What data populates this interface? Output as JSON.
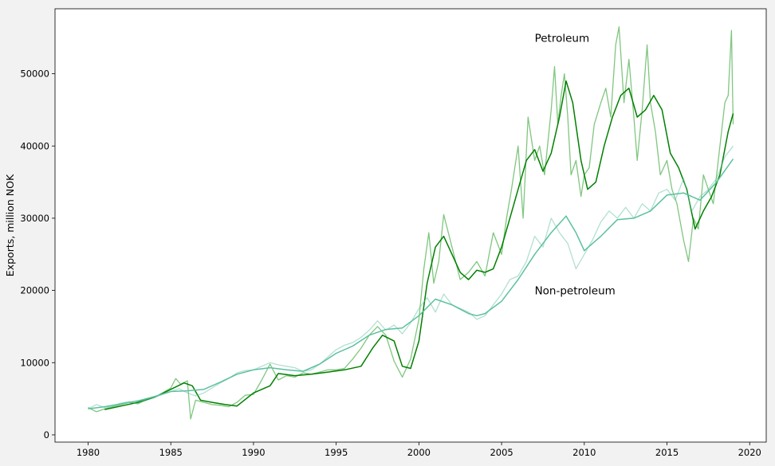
{
  "chart_data": {
    "type": "line",
    "title": "",
    "xlabel": "",
    "ylabel": "Exports, million NOK",
    "xlim": [
      1978.0,
      2021.0
    ],
    "ylim": [
      -1000,
      59000
    ],
    "xticks": [
      1980,
      1985,
      1990,
      1995,
      2000,
      2005,
      2010,
      2015,
      2020
    ],
    "yticks": [
      0,
      10000,
      20000,
      30000,
      40000,
      50000
    ],
    "grid": false,
    "legend": "none",
    "annotations": [
      {
        "text": "Petroleum",
        "x": 2007.0,
        "y": 55000
      },
      {
        "text": "Non-petroleum",
        "x": 2007.0,
        "y": 20000
      }
    ],
    "series": [
      {
        "name": "Petroleum",
        "kind": "monthly",
        "color": "#2ca02c",
        "opacity": 0.6,
        "x": [
          1980.0,
          1980.5,
          1981.0,
          1981.5,
          1982.0,
          1982.5,
          1983.0,
          1983.5,
          1984.0,
          1984.5,
          1985.0,
          1985.3,
          1985.6,
          1986.0,
          1986.2,
          1986.5,
          1987.0,
          1987.5,
          1988.0,
          1988.5,
          1989.0,
          1989.5,
          1990.0,
          1990.5,
          1991.0,
          1991.5,
          1992.0,
          1992.5,
          1993.0,
          1993.5,
          1994.0,
          1994.5,
          1995.0,
          1995.5,
          1996.0,
          1996.5,
          1997.0,
          1997.5,
          1998.0,
          1998.5,
          1999.0,
          1999.5,
          2000.0,
          2000.3,
          2000.6,
          2000.9,
          2001.2,
          2001.5,
          2002.0,
          2002.5,
          2003.0,
          2003.5,
          2004.0,
          2004.5,
          2005.0,
          2005.3,
          2005.6,
          2006.0,
          2006.3,
          2006.6,
          2007.0,
          2007.3,
          2007.6,
          2008.0,
          2008.2,
          2008.4,
          2008.6,
          2008.8,
          2009.0,
          2009.2,
          2009.5,
          2009.8,
          2010.0,
          2010.3,
          2010.6,
          2011.0,
          2011.3,
          2011.6,
          2011.9,
          2012.1,
          2012.4,
          2012.7,
          2013.0,
          2013.2,
          2013.5,
          2013.8,
          2014.0,
          2014.3,
          2014.6,
          2015.0,
          2015.3,
          2015.6,
          2016.0,
          2016.3,
          2016.6,
          2016.9,
          2017.2,
          2017.5,
          2017.8,
          2018.0,
          2018.3,
          2018.5,
          2018.7,
          2018.9,
          2019.0
        ],
        "values": [
          3800,
          3200,
          3600,
          3900,
          4200,
          4500,
          4300,
          4800,
          5200,
          5800,
          6500,
          7800,
          7000,
          7500,
          2200,
          4800,
          4500,
          4200,
          4100,
          3900,
          4500,
          5500,
          5600,
          7600,
          9800,
          7600,
          8200,
          8000,
          8600,
          8400,
          8700,
          9000,
          9000,
          9200,
          10500,
          12000,
          13800,
          15000,
          13800,
          10200,
          8000,
          10500,
          16000,
          23000,
          28000,
          21000,
          24000,
          30500,
          26000,
          21500,
          22500,
          24000,
          22000,
          28000,
          25000,
          30000,
          34000,
          40000,
          30000,
          44000,
          38000,
          40000,
          36000,
          45000,
          51000,
          43000,
          47000,
          50000,
          44000,
          36000,
          38000,
          33000,
          36000,
          37000,
          43000,
          46000,
          48000,
          44000,
          54000,
          56500,
          46000,
          52000,
          44000,
          38000,
          45000,
          54000,
          46000,
          42000,
          36000,
          38000,
          34000,
          32000,
          27000,
          24000,
          30000,
          28500,
          36000,
          34000,
          32000,
          36000,
          42000,
          46000,
          47000,
          56000,
          43000
        ]
      },
      {
        "name": "Petroleum",
        "kind": "trend",
        "color": "#008000",
        "opacity": 1.0,
        "x": [
          1981.0,
          1982.0,
          1983.0,
          1984.0,
          1985.0,
          1985.8,
          1986.3,
          1986.8,
          1987.5,
          1988.3,
          1989.0,
          1990.0,
          1991.0,
          1991.5,
          1992.5,
          1993.5,
          1994.5,
          1995.5,
          1996.5,
          1997.2,
          1997.8,
          1998.5,
          1999.0,
          1999.5,
          2000.0,
          2000.5,
          2001.0,
          2001.5,
          2002.0,
          2002.5,
          2003.0,
          2003.5,
          2004.0,
          2004.5,
          2005.0,
          2005.5,
          2006.0,
          2006.5,
          2007.0,
          2007.5,
          2008.0,
          2008.5,
          2008.9,
          2009.3,
          2009.8,
          2010.2,
          2010.7,
          2011.2,
          2011.7,
          2012.2,
          2012.7,
          2013.2,
          2013.7,
          2014.2,
          2014.7,
          2015.2,
          2015.7,
          2016.2,
          2016.7,
          2017.2,
          2017.7,
          2018.2,
          2018.7,
          2019.0
        ],
        "values": [
          3500,
          4000,
          4500,
          5200,
          6300,
          7200,
          6800,
          4800,
          4500,
          4200,
          4000,
          5800,
          6800,
          8500,
          8200,
          8400,
          8700,
          9000,
          9500,
          12000,
          13800,
          13000,
          9500,
          9200,
          13000,
          21000,
          26000,
          27500,
          25000,
          22500,
          21500,
          22800,
          22500,
          23000,
          26000,
          30000,
          34000,
          38000,
          39500,
          36500,
          39000,
          44000,
          49000,
          46000,
          38000,
          34000,
          35000,
          40000,
          44000,
          47000,
          48000,
          44000,
          45000,
          47000,
          45000,
          39000,
          37000,
          34000,
          28500,
          31000,
          33000,
          36000,
          42000,
          44500
        ]
      },
      {
        "name": "Non-petroleum",
        "kind": "monthly",
        "color": "#66c2a4",
        "opacity": 0.5,
        "x": [
          1980.0,
          1980.5,
          1981.0,
          1981.5,
          1982.0,
          1982.5,
          1983.0,
          1983.5,
          1984.0,
          1984.5,
          1985.0,
          1985.5,
          1986.0,
          1986.5,
          1987.0,
          1987.5,
          1988.0,
          1988.5,
          1989.0,
          1989.5,
          1990.0,
          1990.5,
          1991.0,
          1991.5,
          1992.0,
          1992.5,
          1993.0,
          1993.5,
          1994.0,
          1994.5,
          1995.0,
          1995.5,
          1996.0,
          1996.5,
          1997.0,
          1997.5,
          1998.0,
          1998.5,
          1999.0,
          1999.5,
          2000.0,
          2000.5,
          2001.0,
          2001.5,
          2002.0,
          2002.5,
          2003.0,
          2003.5,
          2004.0,
          2004.5,
          2005.0,
          2005.5,
          2006.0,
          2006.5,
          2007.0,
          2007.5,
          2008.0,
          2008.5,
          2009.0,
          2009.5,
          2010.0,
          2010.5,
          2011.0,
          2011.5,
          2012.0,
          2012.5,
          2013.0,
          2013.5,
          2014.0,
          2014.5,
          2015.0,
          2015.5,
          2016.0,
          2016.5,
          2017.0,
          2017.5,
          2018.0,
          2018.5,
          2019.0
        ],
        "values": [
          3600,
          4200,
          3800,
          4000,
          4400,
          4600,
          4300,
          4900,
          5200,
          5600,
          6000,
          6400,
          5800,
          5400,
          5800,
          6500,
          7200,
          7800,
          8600,
          8900,
          9000,
          9500,
          10000,
          9700,
          9500,
          9300,
          8800,
          9000,
          9800,
          10800,
          11800,
          12400,
          12800,
          13500,
          14500,
          15800,
          14500,
          15200,
          14000,
          15500,
          17500,
          19000,
          17000,
          19500,
          18000,
          17500,
          17000,
          16000,
          16500,
          18000,
          19500,
          21500,
          22000,
          24000,
          27500,
          26000,
          30000,
          28000,
          26500,
          23000,
          25000,
          27000,
          29500,
          31000,
          30000,
          31500,
          30000,
          32000,
          31000,
          33500,
          34000,
          32500,
          35500,
          31000,
          33000,
          34000,
          35500,
          38500,
          40000
        ]
      },
      {
        "name": "Non-petroleum",
        "kind": "trend",
        "color": "#5cc0a0",
        "opacity": 1.0,
        "x": [
          1980.0,
          1981.0,
          1982.0,
          1983.0,
          1984.0,
          1985.0,
          1986.0,
          1987.0,
          1988.0,
          1989.0,
          1990.0,
          1991.0,
          1992.0,
          1993.0,
          1994.0,
          1995.0,
          1996.0,
          1997.0,
          1998.0,
          1999.0,
          2000.0,
          2001.0,
          2002.0,
          2003.0,
          2003.5,
          2004.0,
          2005.0,
          2006.0,
          2007.0,
          2008.0,
          2008.9,
          2009.5,
          2010.0,
          2011.0,
          2012.0,
          2013.0,
          2014.0,
          2015.0,
          2016.0,
          2017.0,
          2018.0,
          2019.0
        ],
        "values": [
          3600,
          3900,
          4300,
          4700,
          5300,
          6000,
          6100,
          6300,
          7300,
          8400,
          9000,
          9300,
          9000,
          8800,
          9800,
          11300,
          12300,
          13800,
          14600,
          14800,
          16500,
          18800,
          18000,
          16800,
          16500,
          16800,
          18500,
          21500,
          25000,
          28000,
          30300,
          28000,
          25500,
          27500,
          29800,
          30000,
          31000,
          33200,
          33500,
          32500,
          35000,
          38200
        ]
      }
    ]
  }
}
